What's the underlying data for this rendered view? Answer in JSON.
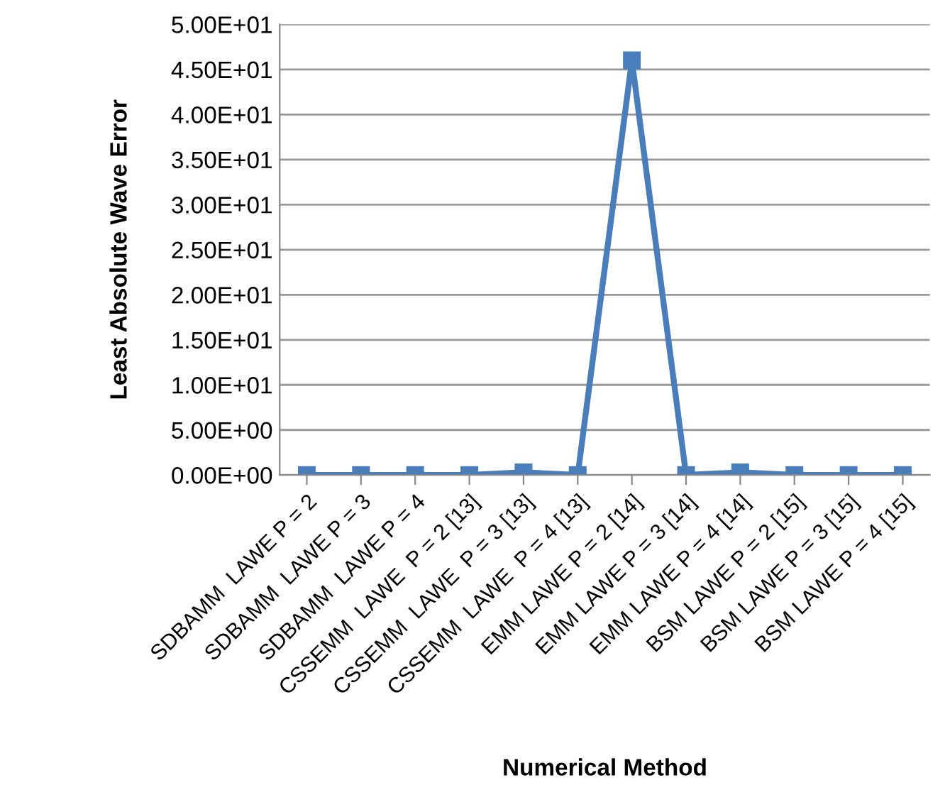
{
  "chart_data": {
    "type": "line",
    "xlabel": "Numerical Method",
    "ylabel": "Least Absolute Wave Error",
    "categories": [
      "SDBAMM  LAWE P = 2",
      "SDBAMM  LAWE P = 3",
      "SDBAMM  LAWE P = 4",
      "CSSEMM  LAWE  P = 2 [13]",
      "CSSEMM  LAWE  P = 3 [13]",
      "CSSEMM  LAWE  P = 4 [13]",
      "EMM LAWE P = 2 [14]",
      "EMM LAWE P = 3 [14]",
      "EMM LAWE P = 4 [14]",
      "BSM LAWE P = 2 [15]",
      "BSM LAWE P = 3 [15]",
      "BSM LAWE P = 4 [15]"
    ],
    "series": [
      {
        "color": "#4a7ebb",
        "values": [
          0,
          0,
          0,
          0,
          0.3,
          0,
          46,
          0,
          0.3,
          0,
          0,
          0
        ]
      }
    ],
    "ylim": [
      0,
      50
    ],
    "yticks": [
      {
        "value": 0,
        "label": "0.00E+00"
      },
      {
        "value": 5,
        "label": "5.00E+00"
      },
      {
        "value": 10,
        "label": "1.00E+01"
      },
      {
        "value": 15,
        "label": "1.50E+01"
      },
      {
        "value": 20,
        "label": "2.00E+01"
      },
      {
        "value": 25,
        "label": "2.50E+01"
      },
      {
        "value": 30,
        "label": "3.00E+01"
      },
      {
        "value": 35,
        "label": "3.50E+01"
      },
      {
        "value": 40,
        "label": "4.00E+01"
      },
      {
        "value": 45,
        "label": "4.50E+01"
      },
      {
        "value": 50,
        "label": "5.00E+01"
      }
    ],
    "grid": "y",
    "marker": "square",
    "line_style": "solid"
  }
}
